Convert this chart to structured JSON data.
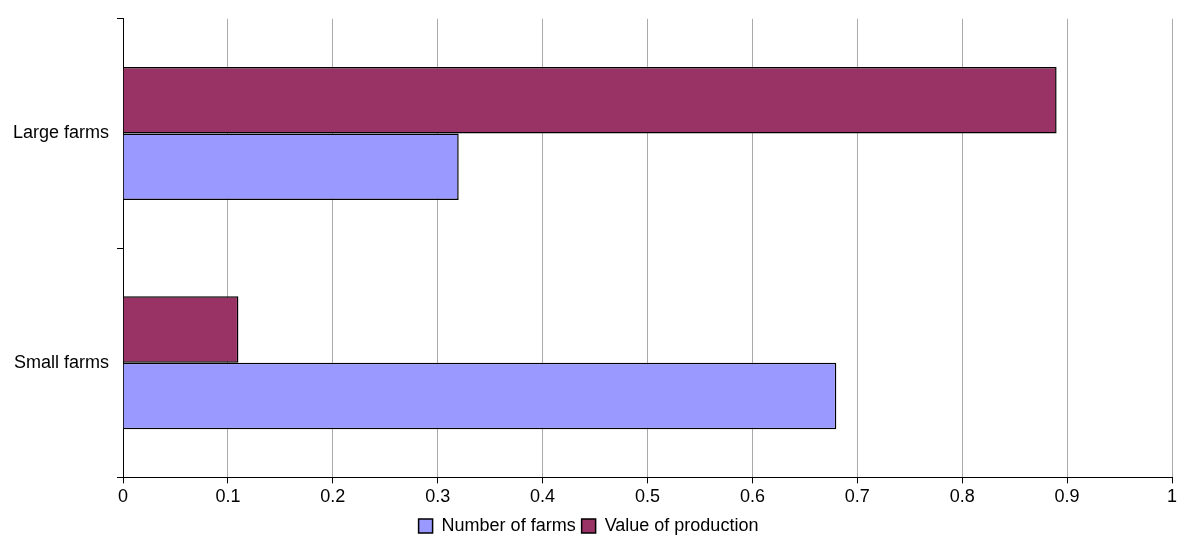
{
  "chart_data": {
    "type": "bar",
    "orientation": "horizontal",
    "categories": [
      "Large farms",
      "Small farms"
    ],
    "series": [
      {
        "name": "Number of farms",
        "color": "#9999ff",
        "values": [
          0.32,
          0.68
        ]
      },
      {
        "name": "Value of production",
        "color": "#993366",
        "values": [
          0.89,
          0.11
        ]
      }
    ],
    "xlim": [
      0,
      1
    ],
    "xticks": [
      0,
      0.1,
      0.2,
      0.3,
      0.4,
      0.5,
      0.6,
      0.7,
      0.8,
      0.9,
      1
    ],
    "grid": "x",
    "legend": "bottom"
  }
}
